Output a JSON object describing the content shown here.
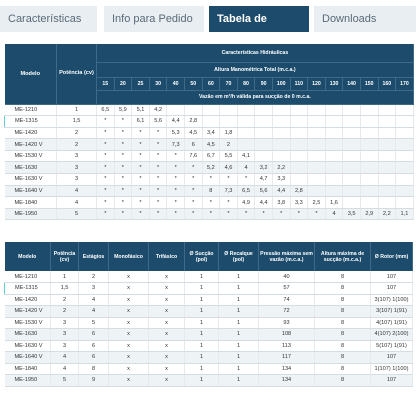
{
  "tabs": [
    {
      "label": "Características",
      "active": false
    },
    {
      "label": "Info para Pedido",
      "active": false
    },
    {
      "label": "Tabela de Seleção",
      "active": true
    },
    {
      "label": "Downloads",
      "active": false
    }
  ],
  "table1": {
    "col_model": "Modelo",
    "col_power": "Potência (cv)",
    "group_title": "Características Hidráulicas",
    "subgroup_title": "Altura Manométrica Total (m.c.a.)",
    "heights": [
      "15",
      "20",
      "25",
      "30",
      "40",
      "50",
      "60",
      "70",
      "80",
      "90",
      "100",
      "110",
      "120",
      "130",
      "140",
      "150",
      "160",
      "170"
    ],
    "flow_note": "Vazão em m³/h válida para sucção de 0 m.c.a.",
    "rows": [
      {
        "model": "ME-1210",
        "power": "1",
        "cells": [
          "6,5",
          "5,9",
          "5,1",
          "4,2",
          "",
          "",
          "",
          "",
          "",
          "",
          "",
          "",
          "",
          "",
          "",
          "",
          "",
          ""
        ]
      },
      {
        "model": "ME-1315",
        "power": "1,5",
        "cells": [
          "*",
          "*",
          "6,1",
          "5,6",
          "4,4",
          "2,8",
          "",
          "",
          "",
          "",
          "",
          "",
          "",
          "",
          "",
          "",
          "",
          ""
        ]
      },
      {
        "model": "ME-1420",
        "power": "2",
        "cells": [
          "*",
          "*",
          "*",
          "*",
          "5,3",
          "4,5",
          "3,4",
          "1,8",
          "",
          "",
          "",
          "",
          "",
          "",
          "",
          "",
          "",
          ""
        ]
      },
      {
        "model": "ME-1420 V",
        "power": "2",
        "cells": [
          "*",
          "*",
          "*",
          "*",
          "7,3",
          "6",
          "4,5",
          "2",
          "",
          "",
          "",
          "",
          "",
          "",
          "",
          "",
          "",
          ""
        ]
      },
      {
        "model": "ME-1530 V",
        "power": "3",
        "cells": [
          "*",
          "*",
          "*",
          "*",
          "*",
          "7,6",
          "6,7",
          "5,5",
          "4,1",
          "",
          "",
          "",
          "",
          "",
          "",
          "",
          "",
          ""
        ]
      },
      {
        "model": "ME-1630",
        "power": "3",
        "cells": [
          "*",
          "*",
          "*",
          "*",
          "*",
          "*",
          "5,2",
          "4,6",
          "4",
          "3,2",
          "2,2",
          "",
          "",
          "",
          "",
          "",
          "",
          ""
        ]
      },
      {
        "model": "ME-1630 V",
        "power": "3",
        "cells": [
          "*",
          "*",
          "*",
          "*",
          "*",
          "*",
          "*",
          "*",
          "*",
          "4,7",
          "3,3",
          "",
          "",
          "",
          "",
          "",
          "",
          ""
        ]
      },
      {
        "model": "ME-1640 V",
        "power": "4",
        "cells": [
          "*",
          "*",
          "*",
          "*",
          "*",
          "*",
          "8",
          "7,3",
          "6,5",
          "5,6",
          "4,4",
          "2,8",
          "",
          "",
          "",
          "",
          "",
          ""
        ]
      },
      {
        "model": "ME-1840",
        "power": "4",
        "cells": [
          "*",
          "*",
          "*",
          "*",
          "*",
          "*",
          "*",
          "*",
          "4,9",
          "4,4",
          "3,8",
          "3,3",
          "2,5",
          "1,6",
          "",
          "",
          "",
          ""
        ]
      },
      {
        "model": "ME-1950",
        "power": "5",
        "cells": [
          "*",
          "*",
          "*",
          "*",
          "*",
          "*",
          "*",
          "*",
          "*",
          "*",
          "*",
          "*",
          "*",
          "4",
          "3,5",
          "2,9",
          "2,2",
          "1,1"
        ]
      }
    ]
  },
  "table2": {
    "headers": [
      "Modelo",
      "Potência (cv)",
      "Estágios",
      "Monofásico",
      "Trifásico",
      "Ø Sucção (pol)",
      "Ø Recalque (pol)",
      "Pressão máxima sem vazão (m.c.a.)",
      "Altura máxima de sucção (m.c.a.)",
      "Ø Rotor (mm)"
    ],
    "rows": [
      [
        "ME-1210",
        "1",
        "2",
        "x",
        "x",
        "1",
        "1",
        "40",
        "8",
        "107"
      ],
      [
        "ME-1315",
        "1,5",
        "3",
        "x",
        "x",
        "1",
        "1",
        "57",
        "8",
        "107"
      ],
      [
        "ME-1420",
        "2",
        "4",
        "x",
        "x",
        "1",
        "1",
        "74",
        "8",
        "3(107) 1(100)"
      ],
      [
        "ME-1420 V",
        "2",
        "4",
        "x",
        "x",
        "1",
        "1",
        "72",
        "8",
        "3(107) 1(91)"
      ],
      [
        "ME-1530 V",
        "3",
        "5",
        "x",
        "x",
        "1",
        "1",
        "93",
        "8",
        "4(107) 1(91)"
      ],
      [
        "ME-1630",
        "3",
        "6",
        "x",
        "x",
        "1",
        "1",
        "108",
        "8",
        "4(107) 2(100)"
      ],
      [
        "ME-1630 V",
        "3",
        "6",
        "x",
        "x",
        "1",
        "1",
        "113",
        "8",
        "5(107) 1(91)"
      ],
      [
        "ME-1640 V",
        "4",
        "6",
        "x",
        "x",
        "1",
        "1",
        "117",
        "8",
        "107"
      ],
      [
        "ME-1840",
        "4",
        "8",
        "x",
        "x",
        "1",
        "1",
        "134",
        "8",
        "1(107) 1(100)"
      ],
      [
        "ME-1950",
        "5",
        "9",
        "x",
        "x",
        "1",
        "1",
        "134",
        "8",
        "107"
      ]
    ]
  },
  "highlight_color": "#5fd0d6",
  "accent_color": "#1c4b6b"
}
